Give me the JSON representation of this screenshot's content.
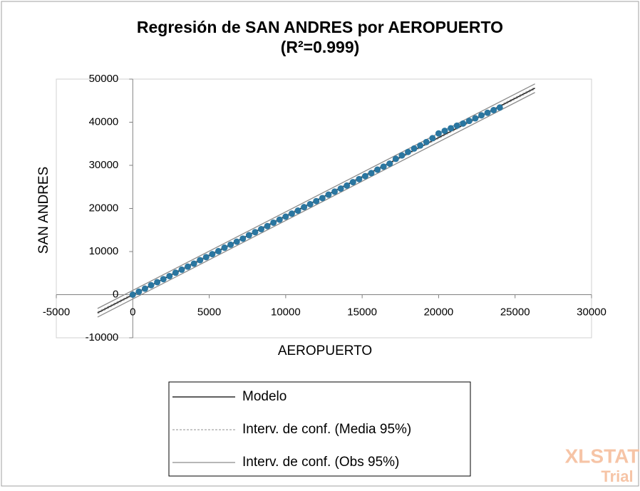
{
  "chart_data": {
    "type": "regression",
    "title": "Regresión de SAN ANDRES por AEROPUERTO",
    "subtitle": "(R²=0.999)",
    "x_label": "AEROPUERTO",
    "y_label": "SAN ANDRES",
    "xlim": [
      -5000,
      30000
    ],
    "ylim": [
      -10000,
      50000
    ],
    "xticks": [
      -5000,
      0,
      5000,
      10000,
      15000,
      20000,
      25000,
      30000
    ],
    "yticks": [
      -10000,
      0,
      10000,
      20000,
      30000,
      40000,
      50000
    ],
    "grid": false,
    "points": {
      "color": "#2a76a0",
      "x": [
        0,
        400,
        800,
        1200,
        1600,
        2000,
        2400,
        2800,
        3200,
        3600,
        4000,
        4400,
        4800,
        5200,
        5600,
        6000,
        6400,
        6800,
        7200,
        7600,
        8000,
        8400,
        8800,
        9200,
        9600,
        10000,
        10400,
        10800,
        11200,
        11600,
        12000,
        12400,
        12800,
        13200,
        13600,
        14000,
        14400,
        14800,
        15200,
        15600,
        16000,
        16400,
        16800,
        17200,
        17600,
        18000,
        18400,
        18800,
        19200,
        19600,
        20000,
        20400,
        20800,
        21200,
        21600,
        22000,
        22400,
        22800,
        23200,
        23600,
        24000
      ],
      "values": [
        0,
        700,
        1400,
        2200,
        2900,
        3600,
        4300,
        5100,
        5800,
        6500,
        7200,
        8000,
        8700,
        9400,
        10100,
        10900,
        11600,
        12300,
        13000,
        13800,
        14500,
        15200,
        15900,
        16700,
        17400,
        18100,
        18800,
        19500,
        20300,
        21000,
        21700,
        22400,
        23200,
        23900,
        24600,
        25300,
        26100,
        26800,
        27500,
        28200,
        29000,
        29700,
        30400,
        31500,
        32300,
        33100,
        33900,
        34600,
        35400,
        36300,
        37400,
        38000,
        38600,
        39200,
        39700,
        40300,
        40900,
        41600,
        42200,
        42800,
        43400
      ]
    },
    "series": [
      {
        "name": "Modelo",
        "color": "#000000",
        "dashed": false,
        "x": [
          -2300,
          26300
        ],
        "values": [
          -4200,
          47900
        ]
      },
      {
        "name": "Interv. de conf. (Media 95%)",
        "color": "#a8a8a8",
        "dashed": true,
        "x": [
          -2300,
          26300
        ],
        "lower": [
          -4400,
          47700
        ],
        "upper": [
          -4000,
          48100
        ]
      },
      {
        "name": "Interv. de conf. (Obs 95%)",
        "color": "#8c8c8c",
        "dashed": false,
        "x": [
          -2300,
          26300
        ],
        "lower": [
          -5200,
          46900
        ],
        "upper": [
          -3200,
          48900
        ]
      }
    ]
  },
  "watermark": {
    "line1": "XLSTAT",
    "line2": "Trial"
  }
}
